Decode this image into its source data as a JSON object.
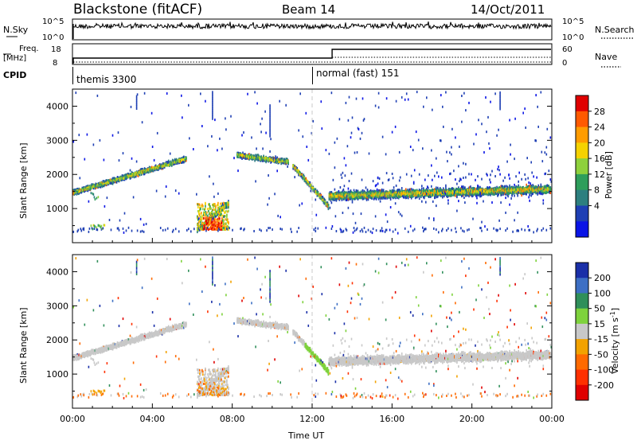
{
  "header": {
    "station": "Blackstone (fitACF)",
    "beam": "Beam 14",
    "date": "14/Oct/2011"
  },
  "summary": {
    "nsky_label": "N.Sky",
    "nsky_ticks": [
      "10^5",
      "10^0"
    ],
    "nsearch_label": "N.Search",
    "nsearch_ticks": [
      "10^5",
      "10^0"
    ],
    "freq_label_1": "Freq.",
    "freq_label_2": "[MHz]",
    "freq_ticks": [
      "18",
      "8"
    ],
    "nave_label": "Nave",
    "nave_ticks": [
      "60",
      "0"
    ],
    "cpid_label": "CPID",
    "cpid_modes": [
      {
        "start_hour": 0,
        "label": "themis 3300"
      },
      {
        "start_hour": 12,
        "label": "normal (fast) 151"
      }
    ]
  },
  "chart_data": [
    {
      "type": "heatmap",
      "name": "power-panel",
      "ylabel": "Slant Range [km]",
      "ylim": [
        0,
        4500
      ],
      "yticks": [
        1000,
        2000,
        3000,
        4000
      ],
      "xlim": [
        0,
        24
      ],
      "colorbar": {
        "label": "Power [dB]",
        "ticks": [
          "28",
          "24",
          "20",
          "16",
          "12",
          "8",
          "4"
        ],
        "colors": [
          "#e00000",
          "#ff5a00",
          "#ff9c00",
          "#f5d200",
          "#8ed13c",
          "#2e9e5b",
          "#2d7f7f",
          "#1e3fb4",
          "#0a14e6"
        ]
      },
      "features": [
        {
          "desc": "rising band",
          "start_hour": 0,
          "end_hour": 5.7,
          "range_start": 1500,
          "range_end": 2500
        },
        {
          "desc": "ground scatter patch",
          "start_hour": 6.2,
          "end_hour": 7.8,
          "range_start": 400,
          "range_end": 1200
        },
        {
          "desc": "band",
          "start_hour": 8.2,
          "end_hour": 10.8,
          "range_start": 2600,
          "range_end": 2400
        },
        {
          "desc": "descending band",
          "start_hour": 11,
          "end_hour": 12.8,
          "range_start": 2300,
          "range_end": 1100
        },
        {
          "desc": "main band",
          "start_hour": 12.8,
          "end_hour": 23.9,
          "range_start": 1400,
          "range_end": 1600
        }
      ]
    },
    {
      "type": "heatmap",
      "name": "velocity-panel",
      "ylabel": "Slant Range [km]",
      "xlabel": "Time UT",
      "ylim": [
        0,
        4500
      ],
      "yticks": [
        1000,
        2000,
        3000,
        4000
      ],
      "xlim": [
        0,
        24
      ],
      "xticks": [
        "00:00",
        "04:00",
        "08:00",
        "12:00",
        "16:00",
        "20:00",
        "00:00"
      ],
      "colorbar": {
        "label": "Velocity [m s^-1]",
        "ticks": [
          "200",
          "100",
          "50",
          "15",
          "-15",
          "-50",
          "-100",
          "-200"
        ],
        "colors": [
          "#1a2fa8",
          "#3d6fc4",
          "#2f8f5a",
          "#7ed23c",
          "#c8c8c8",
          "#f2a200",
          "#ff6a00",
          "#ff3000",
          "#e00000"
        ]
      }
    }
  ]
}
